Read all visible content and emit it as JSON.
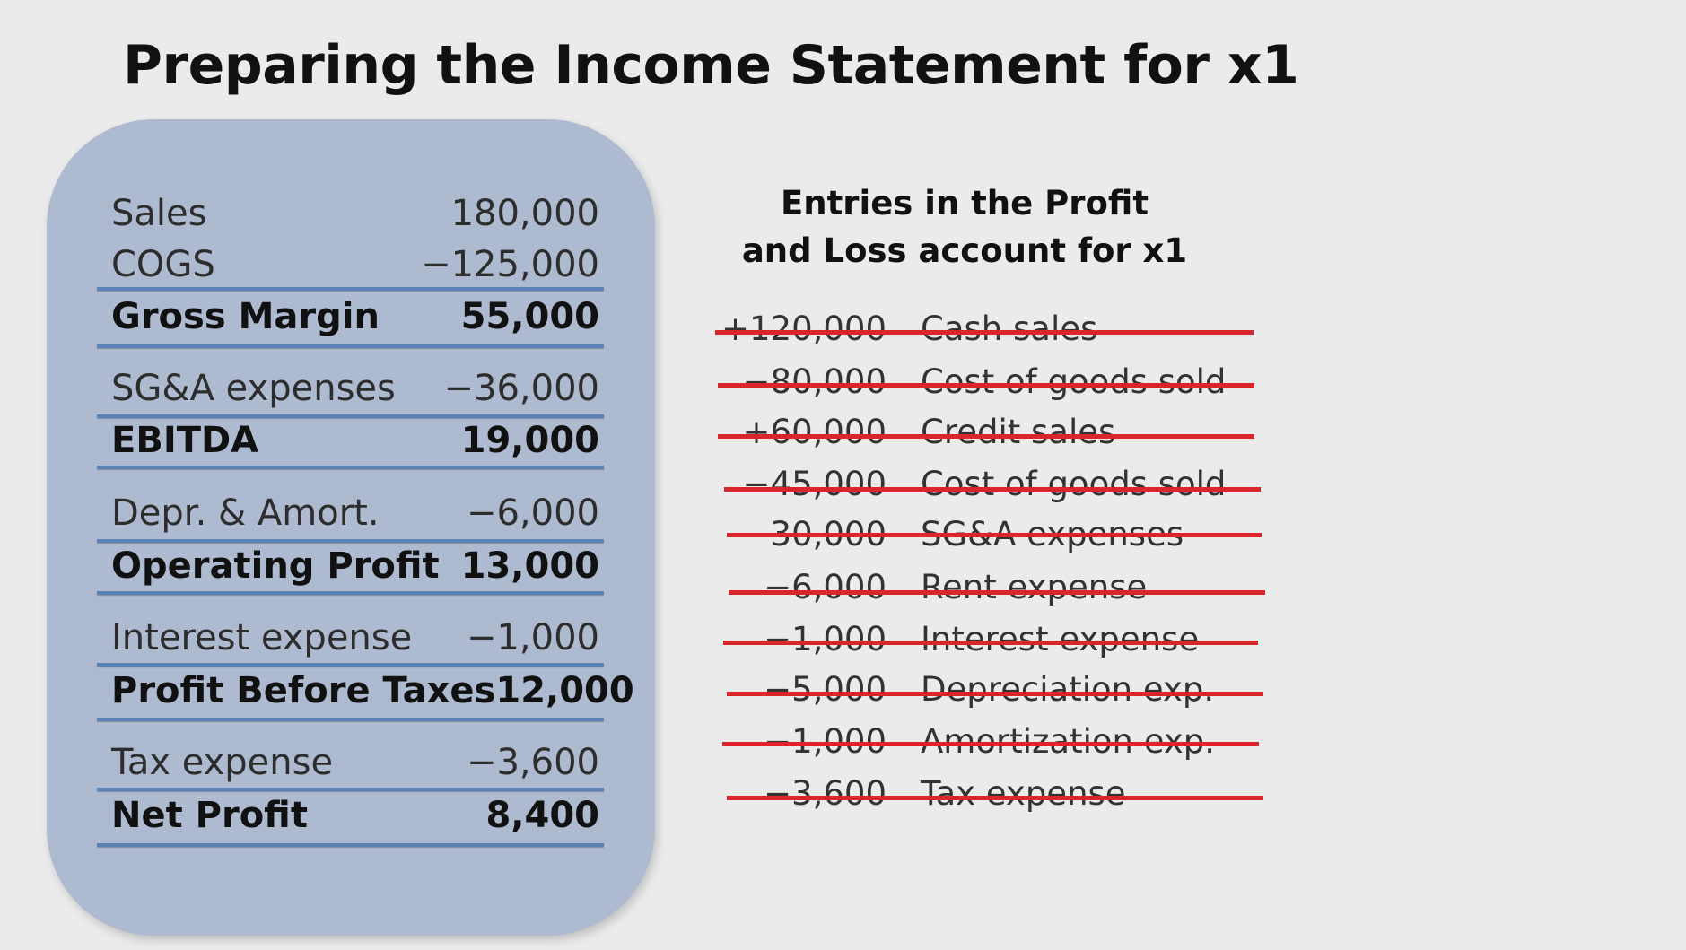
{
  "title": "Preparing the Income Statement for x1",
  "statement": [
    {
      "label": "Sales",
      "value": "180,000",
      "bold": false
    },
    {
      "label": "COGS",
      "value": "−125,000",
      "bold": false
    },
    {
      "label": "Gross Margin",
      "value": "55,000",
      "bold": true
    },
    {
      "label": "SG&A expenses",
      "value": "−36,000",
      "bold": false
    },
    {
      "label": "EBITDA",
      "value": "19,000",
      "bold": true
    },
    {
      "label": "Depr. & Amort.",
      "value": "−6,000",
      "bold": false
    },
    {
      "label": "Operating Profit",
      "value": "13,000",
      "bold": true
    },
    {
      "label": "Interest expense",
      "value": "−1,000",
      "bold": false
    },
    {
      "label": "Profit Before Taxes",
      "value": "12,000",
      "bold": true
    },
    {
      "label": "Tax expense",
      "value": "−3,600",
      "bold": false
    },
    {
      "label": "Net Profit",
      "value": "8,400",
      "bold": true
    }
  ],
  "entries_heading_line1": "Entries in the Profit",
  "entries_heading_line2": "and Loss account for x1",
  "entries": [
    {
      "amount": "+120,000",
      "description": "Cash sales",
      "struck": true
    },
    {
      "amount": "−80,000",
      "description": "Cost of goods sold",
      "struck": true
    },
    {
      "amount": "+60,000",
      "description": "Credit sales",
      "struck": true
    },
    {
      "amount": "−45,000",
      "description": "Cost of goods sold",
      "struck": true
    },
    {
      "amount": "−30,000",
      "description": "SG&A expenses",
      "struck": true
    },
    {
      "amount": "−6,000",
      "description": "Rent expense",
      "struck": true
    },
    {
      "amount": "−1,000",
      "description": "Interest expense",
      "struck": true
    },
    {
      "amount": "−5,000",
      "description": "Depreciation exp.",
      "struck": true
    },
    {
      "amount": "−1,000",
      "description": "Amortization exp.",
      "struck": true
    },
    {
      "amount": "−3,600",
      "description": "Tax expense",
      "struck": true
    }
  ],
  "colors": {
    "panel": "#adbad0",
    "rule": "#5a82b4",
    "strike": "#d9262c",
    "background": "#ebebeb"
  }
}
